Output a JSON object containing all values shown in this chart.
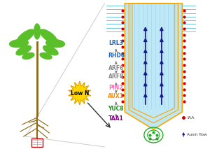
{
  "bg_color": "#ffffff",
  "plant_stem_color": "#8B6914",
  "plant_leaf_color": "#5BBF2A",
  "root_color": "#8B6914",
  "low_n_fill_color": "#FFD700",
  "low_n_edge_color": "#FFD700",
  "low_n_text_color": "#000000",
  "root_tip_bg": "#BEE8F5",
  "root_outer_color1": "#FFA500",
  "root_outer_color2": "#FF8C00",
  "root_dots_color": "#CC0000",
  "root_arrows_color": "#1a1a8c",
  "root_center_color": "#90EE90",
  "root_hair_line_color": "#6DC8E0",
  "labels": [
    "LRL3",
    "RHD6",
    "ARF6",
    "ARF8",
    "PIN2",
    "AUX1",
    "YUC8",
    "TAA1"
  ],
  "label_colors": [
    "#1565C0",
    "#1565C0",
    "#888888",
    "#888888",
    "#FF69B4",
    "#FF8C00",
    "#228B22",
    "#8B008B"
  ],
  "legend_iaa_color": "#CC0000",
  "legend_arrow_color": "#1a1a8c"
}
